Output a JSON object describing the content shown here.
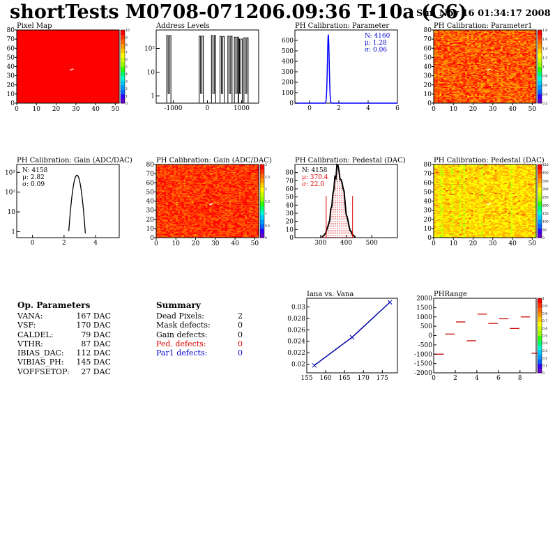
{
  "header": {
    "title": "shortTests M0708-071206.09:36 T-10a (C6)",
    "date": "Sun Nov 16 01:34:17 2008"
  },
  "colors": {
    "red_text": "#e00000",
    "blue_text": "#0000d0",
    "histogram_blue": "#0000ff"
  },
  "chart_data": [
    {
      "id": "pixel-map",
      "type": "heatmap",
      "title": "Pixel Map",
      "xlim": [
        0,
        52
      ],
      "ylim": [
        0,
        80
      ],
      "xticks": [
        0,
        10,
        20,
        30,
        40,
        50
      ],
      "yticks": [
        0,
        10,
        20,
        30,
        40,
        50,
        60,
        70,
        80
      ],
      "palette_ticks": [
        "10",
        "9",
        "8",
        "7",
        "6",
        "5",
        "4",
        "3",
        "2",
        "1",
        "0"
      ],
      "fill": "uniform"
    },
    {
      "id": "address-levels",
      "type": "bar",
      "title": "Address Levels",
      "xlim": [
        -1500,
        1500
      ],
      "ylim": [
        0.5,
        600
      ],
      "log_y": true,
      "xticks": [
        "-1000",
        "0",
        "1000"
      ],
      "yticks": [
        "1",
        "10",
        "10²"
      ],
      "peaks": [
        -1130,
        -180,
        180,
        430,
        660,
        850,
        960,
        1130
      ],
      "peak_heights": [
        350,
        330,
        350,
        320,
        330,
        300,
        250,
        280
      ]
    },
    {
      "id": "ph-parameter",
      "type": "bar",
      "title": "PH Calibration: Parameter",
      "xlim": [
        -1,
        6
      ],
      "ylim": [
        0,
        700
      ],
      "xticks": [
        "0",
        "2",
        "4",
        "6"
      ],
      "yticks": [
        "0",
        "100",
        "200",
        "300",
        "400",
        "500",
        "600"
      ],
      "stats": [
        "N: 4160",
        "μ: 1.28",
        "σ: 0.06"
      ],
      "peak": {
        "center": 1.28,
        "sigma": 0.06,
        "height": 660
      }
    },
    {
      "id": "ph-parameter1",
      "type": "heatmap",
      "title": "PH Calibration: Parameter1",
      "xlim": [
        0,
        52
      ],
      "ylim": [
        0,
        80
      ],
      "xticks": [
        0,
        10,
        20,
        30,
        40,
        50
      ],
      "yticks": [
        0,
        10,
        20,
        30,
        40,
        50,
        60,
        70,
        80
      ],
      "palette_ticks": [
        "1.8",
        "1.6",
        "1.4",
        "1.2",
        "1",
        "0.8",
        "0.6",
        "0.4",
        "0.2"
      ]
    },
    {
      "id": "gain-histogram",
      "type": "bar",
      "title": "PH Calibration: Gain (ADC/DAC)",
      "xlim": [
        -1,
        5.5
      ],
      "ylim": [
        0.5,
        2500
      ],
      "log_y": true,
      "xticks": [
        "0",
        "2",
        "4"
      ],
      "yticks": [
        "1",
        "10",
        "10²",
        "10³"
      ],
      "stats": [
        "N: 4158",
        "μ: 2.82",
        "σ: 0.09"
      ],
      "peak": {
        "center": 2.82,
        "sigma": 0.09,
        "height": 720
      }
    },
    {
      "id": "gain-map",
      "type": "heatmap",
      "title": "PH Calibration: Gain (ADC/DAC)",
      "xlim": [
        0,
        52
      ],
      "ylim": [
        0,
        80
      ],
      "xticks": [
        0,
        10,
        20,
        30,
        40,
        50
      ],
      "yticks": [
        0,
        10,
        20,
        30,
        40,
        50,
        60,
        70,
        80
      ],
      "palette_ticks": [
        "3",
        "2.5",
        "2",
        "1.5",
        "1",
        "0.5",
        "0"
      ]
    },
    {
      "id": "pedestal-histogram",
      "type": "bar",
      "title": "PH Calibration: Pedestal (DAC)",
      "xlim": [
        200,
        600
      ],
      "ylim": [
        0,
        90
      ],
      "xticks": [
        "300",
        "400",
        "500"
      ],
      "yticks": [
        "0",
        "10",
        "20",
        "30",
        "40",
        "50",
        "60",
        "70",
        "80"
      ],
      "stats": [
        "N: 4158",
        "μ: 370.4",
        "σ: 22.0"
      ],
      "peak": {
        "center": 370.4,
        "sigma": 22.0,
        "height": 82
      },
      "cut_lines": [
        322,
        425
      ]
    },
    {
      "id": "pedestal-map",
      "type": "heatmap",
      "title": "PH Calibration: Pedestal (DAC)",
      "xlim": [
        0,
        52
      ],
      "ylim": [
        0,
        80
      ],
      "xticks": [
        0,
        10,
        20,
        30,
        40,
        50
      ],
      "yticks": [
        0,
        10,
        20,
        30,
        40,
        50,
        60,
        70,
        80
      ],
      "palette_ticks": [
        "450",
        "400",
        "350",
        "300",
        "250",
        "200",
        "150",
        "100",
        "50",
        "0"
      ]
    },
    {
      "id": "iana-vs-vana",
      "type": "line",
      "title": "Iana vs. Vana",
      "xlim": [
        155,
        179
      ],
      "ylim": [
        0.0185,
        0.0315
      ],
      "xticks": [
        "155",
        "160",
        "165",
        "170",
        "175"
      ],
      "yticks": [
        "0.02",
        "0.022",
        "0.024",
        "0.026",
        "0.028",
        "0.03"
      ],
      "x": [
        157,
        167,
        177
      ],
      "y": [
        0.0198,
        0.0247,
        0.0308
      ]
    },
    {
      "id": "ph-range",
      "type": "scatter",
      "title": "PHRange",
      "xlim": [
        0,
        9.5
      ],
      "ylim": [
        -2000,
        2000
      ],
      "xticks": [
        "0",
        "2",
        "4",
        "6",
        "8"
      ],
      "yticks": [
        "-2000",
        "-1500",
        "-1000",
        "-500",
        "0",
        "500",
        "1000",
        "1500",
        "2000"
      ],
      "bins": [
        0.5,
        1.5,
        2.5,
        3.5,
        4.5,
        5.5,
        6.5,
        7.5,
        8.5,
        9.5
      ],
      "values": [
        -1000,
        80,
        730,
        -280,
        1150,
        650,
        900,
        380,
        1000,
        -950
      ],
      "palette_ticks": [
        "1",
        "0.9",
        "0.8",
        "0.7",
        "0.6",
        "0.5",
        "0.4",
        "0.3",
        "0.2",
        "0.1",
        "0"
      ]
    }
  ],
  "op_parameters": {
    "heading": "Op. Parameters",
    "rows": [
      {
        "name": "VANA:",
        "value": "167 DAC"
      },
      {
        "name": "VSF:",
        "value": "170 DAC"
      },
      {
        "name": "CALDEL:",
        "value": "79 DAC"
      },
      {
        "name": "VTHR:",
        "value": "87 DAC"
      },
      {
        "name": "IBIAS_DAC:",
        "value": "112 DAC"
      },
      {
        "name": "VIBIAS_PH:",
        "value": "145 DAC"
      },
      {
        "name": "VOFFSETOP:",
        "value": "27 DAC"
      }
    ]
  },
  "summary": {
    "heading": "Summary",
    "rows": [
      {
        "name": "Dead Pixels:",
        "value": "2",
        "color": "#000000"
      },
      {
        "name": "Mask defects:",
        "value": "0",
        "color": "#000000"
      },
      {
        "name": "Gain defects:",
        "value": "0",
        "color": "#000000"
      },
      {
        "name": "Ped. defects:",
        "value": "0",
        "color": "#e00000"
      },
      {
        "name": "Par1 defects:",
        "value": "0",
        "color": "#0000d0"
      }
    ]
  }
}
